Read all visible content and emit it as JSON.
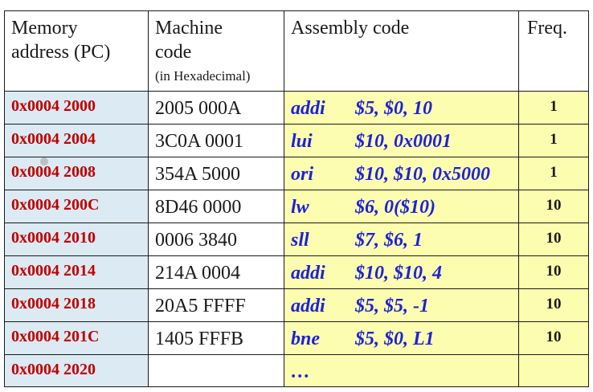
{
  "table": {
    "headers": {
      "address_line1": "Memory",
      "address_line2": "address (PC)",
      "machine_line1": "Machine",
      "machine_line2": "code",
      "machine_sub": "(in Hexadecimal)",
      "assembly": "Assembly code",
      "freq": "Freq."
    },
    "rows": [
      {
        "address": "0x0004 2000",
        "machine": "2005 000A",
        "mnemonic": "addi",
        "operands": "$5, $0, 10",
        "freq": "1"
      },
      {
        "address": "0x0004 2004",
        "machine": "3C0A 0001",
        "mnemonic": "lui",
        "operands": "$10, 0x0001",
        "freq": "1"
      },
      {
        "address": "0x0004 2008",
        "machine": "354A 5000",
        "mnemonic": "ori",
        "operands": "$10, $10, 0x5000",
        "freq": "1"
      },
      {
        "address": "0x0004 200C",
        "machine": "8D46 0000",
        "mnemonic": "lw",
        "operands": "$6, 0($10)",
        "freq": "10"
      },
      {
        "address": "0x0004 2010",
        "machine": "0006 3840",
        "mnemonic": "sll",
        "operands": "$7, $6, 1",
        "freq": "10"
      },
      {
        "address": "0x0004 2014",
        "machine": "214A 0004",
        "mnemonic": "addi",
        "operands": "$10, $10, 4",
        "freq": "10"
      },
      {
        "address": "0x0004 2018",
        "machine": "20A5 FFFF",
        "mnemonic": "addi",
        "operands": "$5, $5, -1",
        "freq": "10"
      },
      {
        "address": "0x0004 201C",
        "machine": "1405 FFFB",
        "mnemonic": "bne",
        "operands": "$5, $0, L1",
        "freq": "10"
      },
      {
        "address": "0x0004 2020",
        "machine": "",
        "mnemonic": "…",
        "operands": "",
        "freq": ""
      }
    ]
  },
  "colors": {
    "address_bg": "#dbeaf3",
    "address_text": "#c00000",
    "assembly_bg": "#fdfdb0",
    "assembly_text": "#1c22d8"
  }
}
